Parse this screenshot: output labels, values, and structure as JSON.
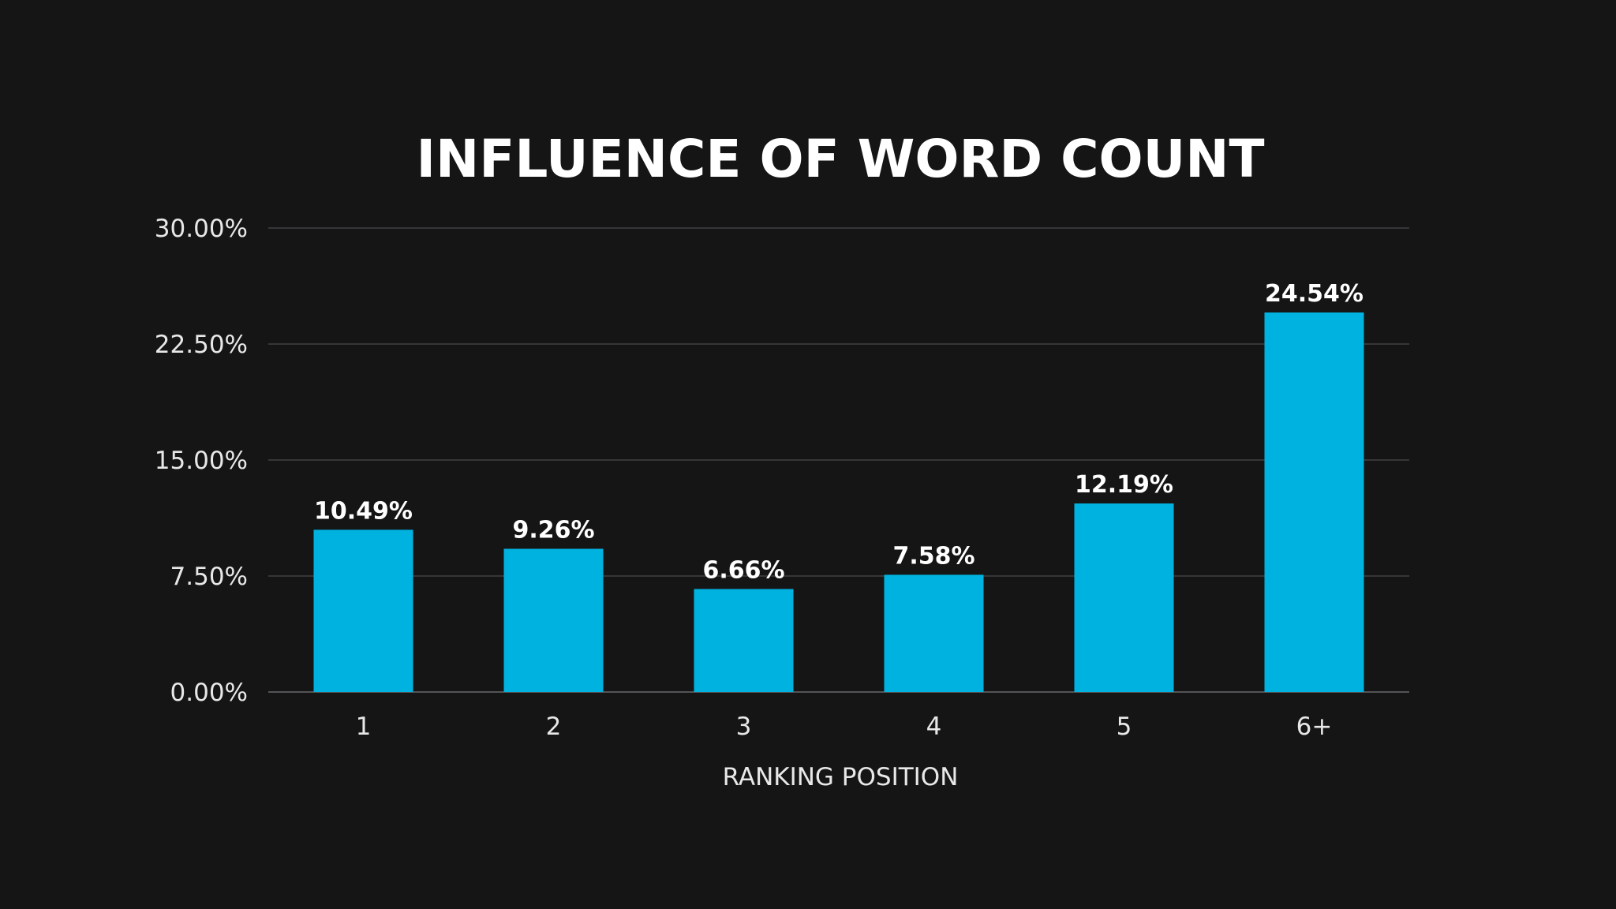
{
  "chart_data": {
    "type": "bar",
    "title": "INFLUENCE OF WORD COUNT",
    "xlabel": "RANKING POSITION",
    "ylabel": "",
    "categories": [
      "1",
      "2",
      "3",
      "4",
      "5",
      "6+"
    ],
    "values": [
      10.49,
      9.26,
      6.66,
      7.58,
      12.19,
      24.54
    ],
    "data_labels": [
      "10.49%",
      "9.26%",
      "6.66%",
      "7.58%",
      "12.19%",
      "24.54%"
    ],
    "ylim": [
      0,
      30
    ],
    "yticks": [
      0,
      7.5,
      15,
      22.5,
      30
    ],
    "ytick_labels": [
      "0.00%",
      "7.50%",
      "15.00%",
      "22.50%",
      "30.00%"
    ],
    "grid": true,
    "legend": "none",
    "colors": {
      "background": "#151516",
      "bar": "#00b2df",
      "text": "#ffffff",
      "grid": "#4a4a4c"
    }
  }
}
